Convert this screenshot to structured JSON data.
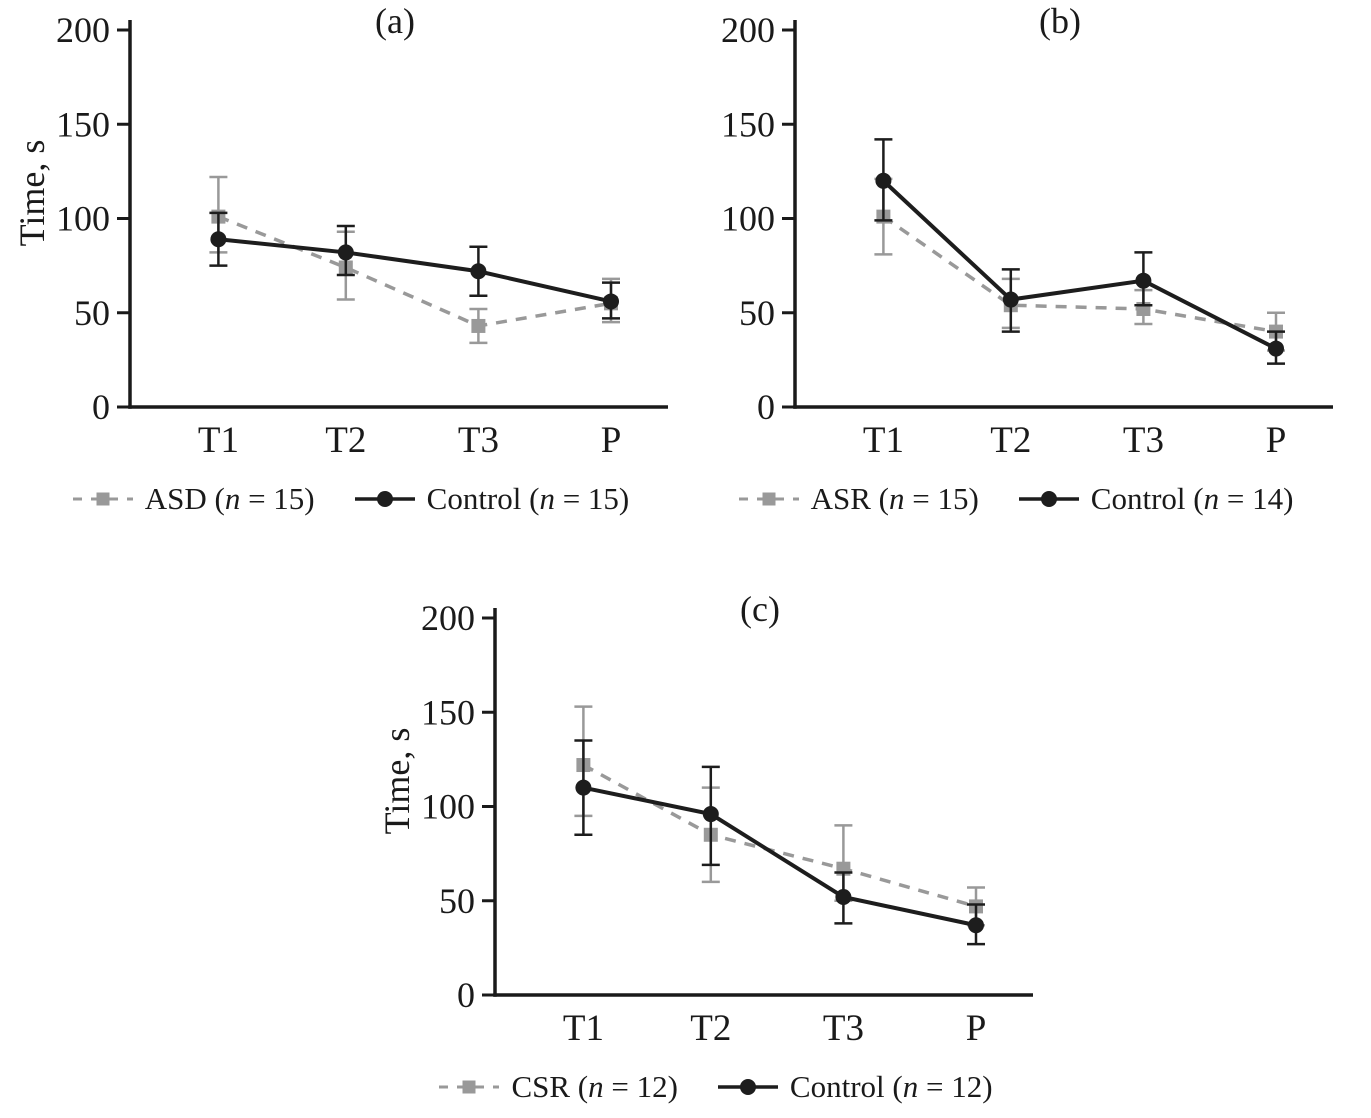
{
  "figure": {
    "background": "#ffffff",
    "axis_color": "#1a1a1a",
    "gray_series_color": "#999999",
    "black_series_color": "#1d1d1d"
  },
  "chart_data": [
    {
      "type": "line",
      "title": "(a)",
      "ylabel": "Time, s",
      "xlabel": "",
      "categories": [
        "T1",
        "T2",
        "T3",
        "P"
      ],
      "ylim": [
        0,
        200
      ],
      "yticks": [
        0,
        50,
        100,
        150,
        200
      ],
      "grid": "off",
      "legend_position": "bottom",
      "series": [
        {
          "name": "ASD (n = 15)",
          "key": "asd",
          "line": "dashed",
          "marker": "square",
          "color": "#999999",
          "values": [
            101,
            74,
            43,
            55
          ],
          "error_bounds": [
            [
              82,
              122
            ],
            [
              57,
              93
            ],
            [
              34,
              52
            ],
            [
              45,
              68
            ]
          ]
        },
        {
          "name": "Control (n = 15)",
          "key": "control-a",
          "line": "solid",
          "marker": "circle",
          "color": "#1d1d1d",
          "values": [
            89,
            82,
            72,
            56
          ],
          "error_bounds": [
            [
              75,
              103
            ],
            [
              70,
              96
            ],
            [
              59,
              85
            ],
            [
              47,
              66
            ]
          ]
        }
      ]
    },
    {
      "type": "line",
      "title": "(b)",
      "ylabel": "",
      "xlabel": "",
      "categories": [
        "T1",
        "T2",
        "T3",
        "P"
      ],
      "ylim": [
        0,
        200
      ],
      "yticks": [
        0,
        50,
        100,
        150,
        200
      ],
      "grid": "off",
      "legend_position": "bottom",
      "series": [
        {
          "name": "ASR (n = 15)",
          "key": "asr",
          "line": "dashed",
          "marker": "square",
          "color": "#999999",
          "values": [
            101,
            54,
            52,
            40
          ],
          "error_bounds": [
            [
              81,
              121
            ],
            [
              42,
              68
            ],
            [
              44,
              62
            ],
            [
              30,
              50
            ]
          ]
        },
        {
          "name": "Control (n = 14)",
          "key": "control-b",
          "line": "solid",
          "marker": "circle",
          "color": "#1d1d1d",
          "values": [
            120,
            57,
            67,
            31
          ],
          "error_bounds": [
            [
              99,
              142
            ],
            [
              40,
              73
            ],
            [
              54,
              82
            ],
            [
              23,
              40
            ]
          ]
        }
      ]
    },
    {
      "type": "line",
      "title": "(c)",
      "ylabel": "Time, s",
      "xlabel": "",
      "categories": [
        "T1",
        "T2",
        "T3",
        "P"
      ],
      "ylim": [
        0,
        200
      ],
      "yticks": [
        0,
        50,
        100,
        150,
        200
      ],
      "grid": "off",
      "legend_position": "bottom",
      "series": [
        {
          "name": "CSR (n = 12)",
          "key": "csr",
          "line": "dashed",
          "marker": "square",
          "color": "#999999",
          "values": [
            122,
            85,
            67,
            47
          ],
          "error_bounds": [
            [
              95,
              153
            ],
            [
              60,
              110
            ],
            [
              50,
              90
            ],
            [
              37,
              57
            ]
          ]
        },
        {
          "name": "Control (n = 12)",
          "key": "control-c",
          "line": "solid",
          "marker": "circle",
          "color": "#1d1d1d",
          "values": [
            110,
            96,
            52,
            37
          ],
          "error_bounds": [
            [
              85,
              135
            ],
            [
              69,
              121
            ],
            [
              38,
              65
            ],
            [
              27,
              48
            ]
          ]
        }
      ]
    }
  ]
}
